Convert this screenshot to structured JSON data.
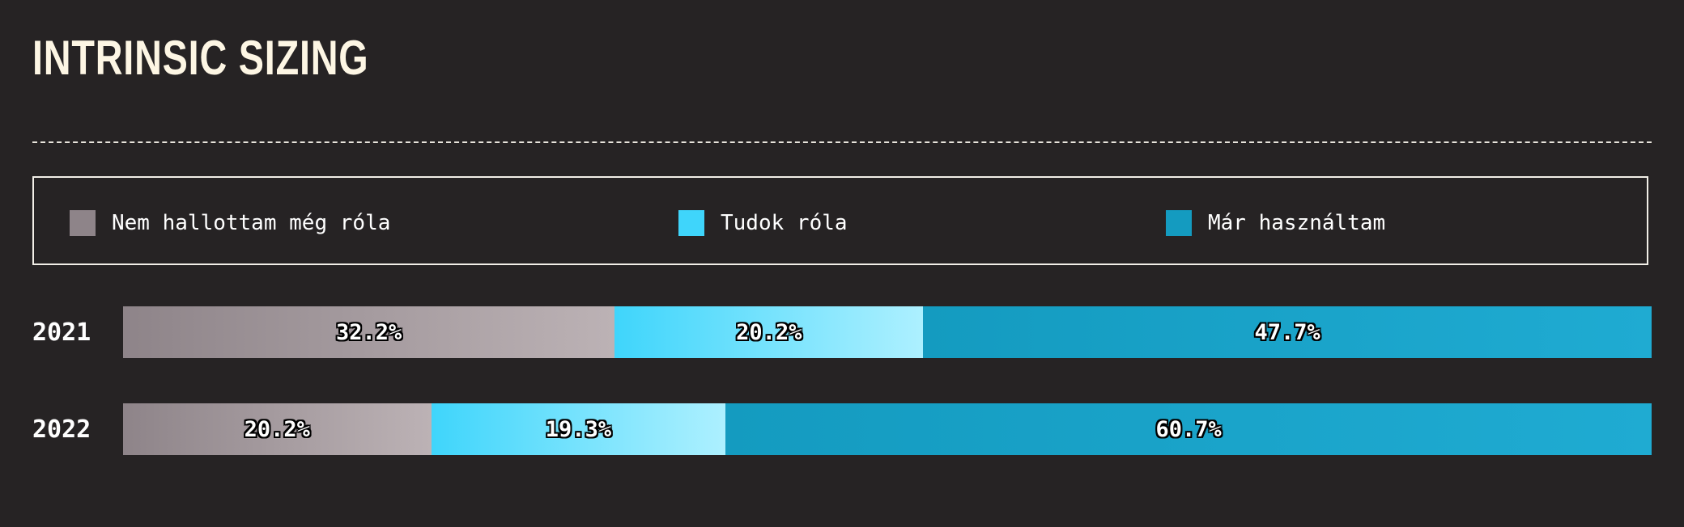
{
  "title": "INTRINSIC SIZING",
  "legend": [
    {
      "label": "Nem hallottam még róla",
      "color": "#8e8489"
    },
    {
      "label": "Tudok róla",
      "color": "#3fd5fb"
    },
    {
      "label": "Már használtam",
      "color": "#149bc0"
    }
  ],
  "colors": {
    "background": "#262324",
    "not_heard": [
      "#8e8489",
      "#bcb2b5"
    ],
    "know_about": [
      "#3fd5fb",
      "#adf0ff"
    ],
    "used": [
      "#149bc0",
      "#1fabd2"
    ]
  },
  "chart_data": {
    "type": "bar",
    "orientation": "horizontal",
    "stacked": true,
    "percent": true,
    "categories": [
      "2021",
      "2022"
    ],
    "series": [
      {
        "name": "Nem hallottam még róla",
        "values": [
          32.2,
          20.2
        ],
        "labels": [
          "32.2%",
          "20.2%"
        ]
      },
      {
        "name": "Tudok róla",
        "values": [
          20.2,
          19.3
        ],
        "labels": [
          "20.2%",
          "19.3%"
        ]
      },
      {
        "name": "Már használtam",
        "values": [
          47.7,
          60.7
        ],
        "labels": [
          "47.7%",
          "60.7%"
        ]
      }
    ],
    "title": "INTRINSIC SIZING",
    "legend_position": "top",
    "grid": false
  }
}
